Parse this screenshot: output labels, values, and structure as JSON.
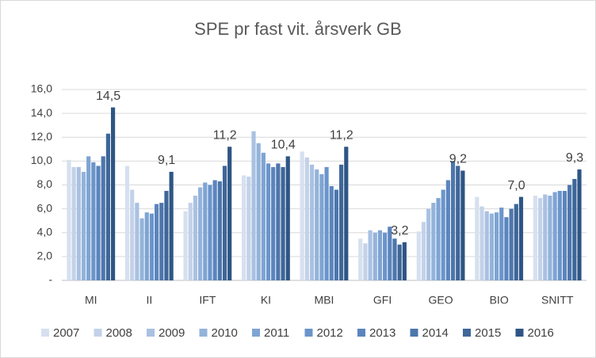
{
  "chart_data": {
    "type": "bar",
    "title": "SPE pr fast vit. årsverk GB",
    "categories": [
      "MI",
      "II",
      "IFT",
      "KI",
      "MBI",
      "GFI",
      "GEO",
      "BIO",
      "SNITT"
    ],
    "series": [
      {
        "name": "2007",
        "color": "#d6e0ef",
        "values": [
          10.1,
          9.6,
          5.8,
          8.8,
          10.8,
          3.5,
          4.1,
          7.0,
          7.1
        ]
      },
      {
        "name": "2008",
        "color": "#c3d2e9",
        "values": [
          9.5,
          7.6,
          6.5,
          8.7,
          10.3,
          3.1,
          4.9,
          6.2,
          6.9
        ]
      },
      {
        "name": "2009",
        "color": "#a9c1e2",
        "values": [
          9.5,
          6.5,
          7.1,
          12.5,
          9.7,
          4.2,
          6.0,
          5.8,
          7.2
        ]
      },
      {
        "name": "2010",
        "color": "#93b3da",
        "values": [
          9.1,
          5.2,
          7.8,
          11.5,
          9.3,
          4.0,
          6.5,
          5.6,
          7.1
        ]
      },
      {
        "name": "2011",
        "color": "#7ea4d3",
        "values": [
          10.4,
          5.7,
          8.2,
          10.7,
          8.9,
          4.2,
          6.9,
          5.7,
          7.4
        ]
      },
      {
        "name": "2012",
        "color": "#6b95cb",
        "values": [
          9.9,
          5.6,
          8.0,
          9.8,
          9.5,
          4.0,
          7.6,
          6.1,
          7.5
        ]
      },
      {
        "name": "2013",
        "color": "#5b85bd",
        "values": [
          9.6,
          6.4,
          8.4,
          9.5,
          7.9,
          4.5,
          8.4,
          5.3,
          7.5
        ]
      },
      {
        "name": "2014",
        "color": "#4d76ac",
        "values": [
          10.4,
          6.5,
          8.3,
          9.8,
          7.6,
          3.5,
          10.0,
          6.0,
          8.0
        ]
      },
      {
        "name": "2015",
        "color": "#3e6699",
        "values": [
          12.3,
          7.5,
          9.6,
          9.5,
          9.7,
          3.0,
          9.6,
          6.4,
          8.5
        ]
      },
      {
        "name": "2016",
        "color": "#2e5585",
        "values": [
          14.5,
          9.1,
          11.2,
          10.4,
          11.2,
          3.2,
          9.2,
          7.0,
          9.3
        ],
        "value_labels": [
          "14,5",
          "9,1",
          "11,2",
          "10,4",
          "11,2",
          "3,2",
          "9,2",
          "7,0",
          "9,3"
        ]
      }
    ],
    "ylim": [
      0,
      16
    ],
    "yticks": [
      {
        "value": 0,
        "label": "-"
      },
      {
        "value": 2,
        "label": "2,0"
      },
      {
        "value": 4,
        "label": "4,0"
      },
      {
        "value": 6,
        "label": "6,0"
      },
      {
        "value": 8,
        "label": "8,0"
      },
      {
        "value": 10,
        "label": "10,0"
      },
      {
        "value": 12,
        "label": "12,0"
      },
      {
        "value": 14,
        "label": "14,0"
      },
      {
        "value": 16,
        "label": "16,0"
      }
    ],
    "grid": true,
    "legend": "bottom"
  }
}
